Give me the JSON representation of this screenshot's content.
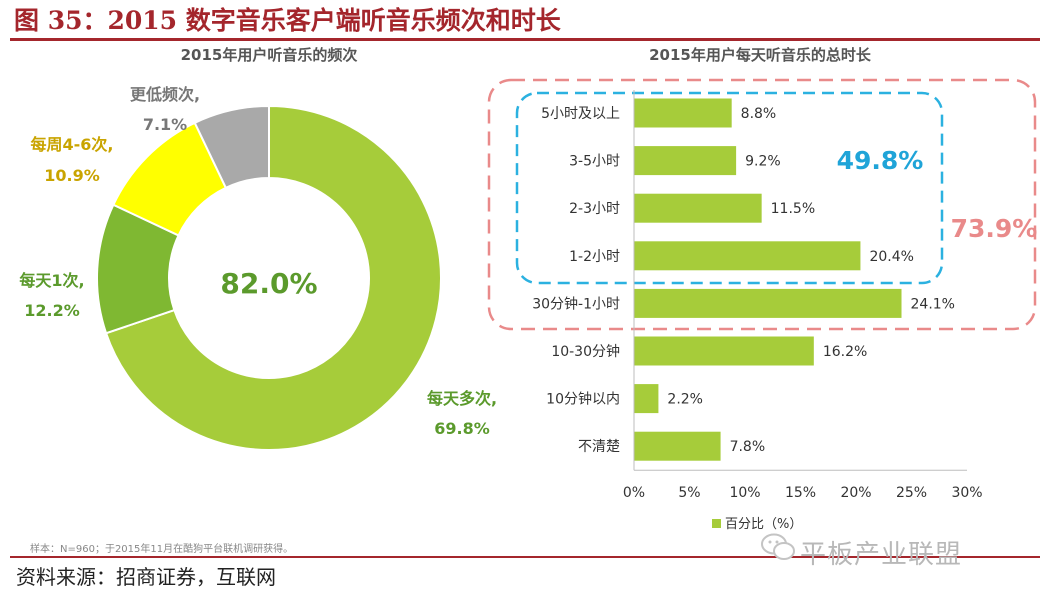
{
  "figure": {
    "title": "图 35：2015 数字音乐客户端听音乐频次和时长",
    "note": "样本：N=960；于2015年11月在酷狗平台联机调研获得。",
    "source": "资料来源：招商证券，互联网",
    "watermark": "平板产业联盟",
    "colors": {
      "brand": "#a4262c",
      "green": "#a6cc3a",
      "dark_green": "#7fb832",
      "yellow": "#ffff00",
      "gray": "#a9a9a9"
    }
  },
  "chart_data": [
    {
      "type": "pie",
      "variant": "donut",
      "title": "2015年用户听音乐的频次",
      "center_label": "82.0%",
      "slices": [
        {
          "name": "每天多次,",
          "value": 69.8,
          "label": "69.8%",
          "color": "#a6cc3a"
        },
        {
          "name": "每天1次,",
          "value": 12.2,
          "label": "12.2%",
          "color": "#7fb832"
        },
        {
          "name": "每周4-6次,",
          "value": 10.9,
          "label": "10.9%",
          "color": "#ffff00"
        },
        {
          "name": "更低频次,",
          "value": 7.1,
          "label": "7.1%",
          "color": "#a9a9a9"
        }
      ]
    },
    {
      "type": "bar",
      "orientation": "horizontal",
      "title": "2015年用户每天听音乐的总时长",
      "categories": [
        "5小时及以上",
        "3-5小时",
        "2-3小时",
        "1-2小时",
        "30分钟-1小时",
        "10-30分钟",
        "10分钟以内",
        "不清楚"
      ],
      "series": [
        {
          "name": "百分比（%）",
          "values": [
            8.8,
            9.2,
            11.5,
            20.4,
            24.1,
            16.2,
            2.2,
            7.8
          ],
          "color": "#a6cc3a"
        }
      ],
      "value_labels": [
        "8.8%",
        "9.2%",
        "11.5%",
        "20.4%",
        "24.1%",
        "16.2%",
        "2.2%",
        "7.8%"
      ],
      "xlim": [
        0,
        30
      ],
      "xticks": [
        0,
        5,
        10,
        15,
        20,
        25,
        30
      ],
      "xtick_labels": [
        "0%",
        "5%",
        "10%",
        "15%",
        "20%",
        "25%",
        "30%"
      ],
      "legend": "bottom",
      "annotations": [
        {
          "text": "49.8%",
          "color": "#1fa4d8",
          "groups": [
            "5小时及以上",
            "3-5小时",
            "2-3小时",
            "1-2小时"
          ]
        },
        {
          "text": "73.9%",
          "color": "#e98a8a",
          "groups": [
            "5小时及以上",
            "3-5小时",
            "2-3小时",
            "1-2小时",
            "30分钟-1小时"
          ]
        }
      ]
    }
  ]
}
